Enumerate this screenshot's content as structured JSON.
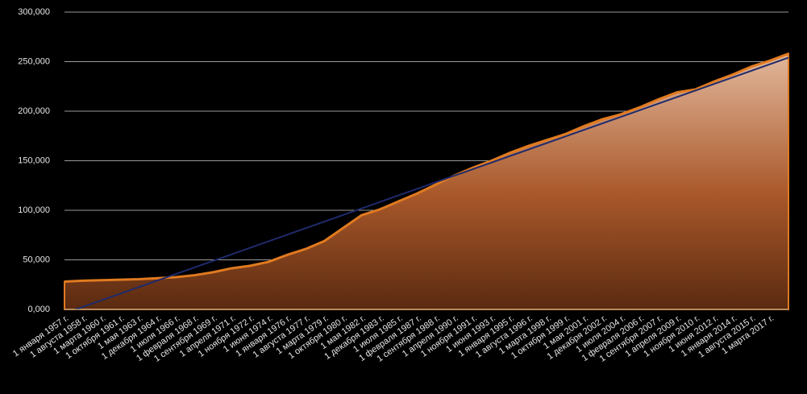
{
  "chart_data": {
    "type": "area",
    "x": [
      "1 января 1957 г.",
      "1 августа 1958 г.",
      "1 марта 1960 г.",
      "1 октября 1961 г.",
      "1 мая 1963 г.",
      "1 декабря 1964 г.",
      "1 июля 1966 г.",
      "1 февраля 1968 г.",
      "1 сентября 1969 г.",
      "1 апреля 1971 г.",
      "1 ноября 1972 г.",
      "1 июня 1974 г.",
      "1 января 1976 г.",
      "1 августа 1977 г.",
      "1 марта 1979 г.",
      "1 октября 1980 г.",
      "1 мая 1982 г.",
      "1 декабря 1983 г.",
      "1 июля 1985 г.",
      "1 февраля 1987 г.",
      "1 сентября 1988 г.",
      "1 апреля 1990 г.",
      "1 ноября 1991 г.",
      "1 июня 1993 г.",
      "1 января 1995 г.",
      "1 августа 1996 г.",
      "1 марта 1998 г.",
      "1 октября 1999 г.",
      "1 мая 2001 г.",
      "1 декабря 2002 г.",
      "1 июля 2004 г.",
      "1 февраля 2006 г.",
      "1 сентября 2007 г.",
      "1 апреля 2009 г.",
      "1 ноября 2010 г.",
      "1 июня 2012 г.",
      "1 января 2014 г.",
      "1 августа 2015 г.",
      "1 марта 2017 г.",
      null
    ],
    "values": [
      28000,
      29000,
      29500,
      30000,
      30500,
      31500,
      32500,
      34500,
      37500,
      41500,
      44000,
      48000,
      55000,
      61000,
      69000,
      82000,
      95000,
      101000,
      109000,
      117000,
      126000,
      135000,
      143000,
      150000,
      158000,
      165000,
      171000,
      177000,
      185000,
      192000,
      197000,
      204000,
      212000,
      219000,
      222000,
      230000,
      237000,
      245000,
      251000,
      258000
    ],
    "color": "#e07a20",
    "trend": {
      "color": "#1f2a6b",
      "values": [
        -4000,
        254000
      ]
    },
    "ylim": [
      0,
      300000
    ],
    "yticks": [
      {
        "value": 0,
        "label": "0,000"
      },
      {
        "value": 50000,
        "label": "50,000"
      },
      {
        "value": 100000,
        "label": "100,000"
      },
      {
        "value": 150000,
        "label": "150,000"
      },
      {
        "value": 200000,
        "label": "200,000"
      },
      {
        "value": 250000,
        "label": "250,000"
      },
      {
        "value": 300000,
        "label": "300,000"
      }
    ],
    "grid": true
  }
}
